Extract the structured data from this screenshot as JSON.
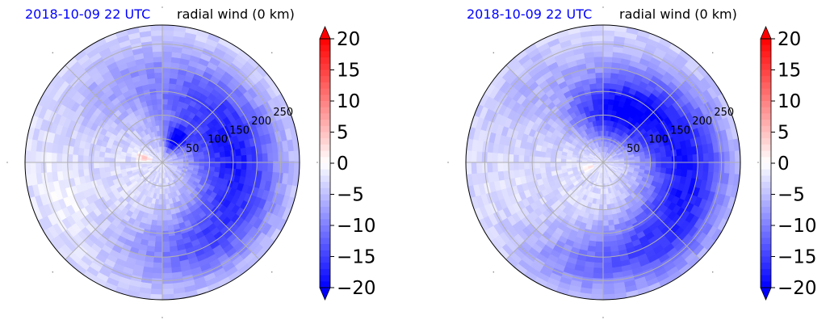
{
  "chart_data": [
    {
      "type": "heatmap",
      "projection": "polar",
      "title_left": "2018-10-09 22 UTC",
      "title_right": "radial wind (0 km)",
      "radial_ticks": [
        "50",
        "100",
        "150",
        "200",
        "250"
      ],
      "radial_tick_values": [
        50,
        100,
        150,
        200,
        250
      ],
      "radius_max": 290,
      "spoke_angles_deg": [
        0,
        45,
        90,
        135,
        180,
        225,
        270,
        315
      ],
      "grid": true,
      "colorbar": {
        "ticks": [
          "20",
          "15",
          "10",
          "5",
          "0",
          "−5",
          "−10",
          "−15",
          "−20"
        ],
        "tick_values": [
          20,
          15,
          10,
          5,
          0,
          -5,
          -10,
          -15,
          -20
        ],
        "range": [
          -20,
          20
        ],
        "extend": "both",
        "cmap": "bwr"
      },
      "features": [
        {
          "r": 130,
          "angle_deg": 40,
          "value": -11,
          "width": 120
        },
        {
          "r": 55,
          "angle_deg": 60,
          "value": -14,
          "width": 35
        },
        {
          "r": 40,
          "angle_deg": 165,
          "value": 9,
          "width": 18
        },
        {
          "r": 170,
          "angle_deg": -20,
          "value": -8,
          "width": 110
        },
        {
          "r": 200,
          "angle_deg": -70,
          "value": -6,
          "width": 90
        },
        {
          "r": 220,
          "angle_deg": 200,
          "value": 2,
          "width": 60
        },
        {
          "r": 200,
          "angle_deg": 120,
          "value": -3,
          "width": 80
        }
      ]
    },
    {
      "type": "heatmap",
      "projection": "polar",
      "title_left": "2018-10-09 22 UTC",
      "title_right": "radial wind (0 km)",
      "radial_ticks": [
        "50",
        "100",
        "150",
        "200",
        "250"
      ],
      "radial_tick_values": [
        50,
        100,
        150,
        200,
        250
      ],
      "radius_max": 290,
      "spoke_angles_deg": [
        0,
        45,
        90,
        135,
        180,
        225,
        270,
        315
      ],
      "grid": true,
      "colorbar": {
        "ticks": [
          "20",
          "15",
          "10",
          "5",
          "0",
          "−5",
          "−10",
          "−15",
          "−20"
        ],
        "tick_values": [
          20,
          15,
          10,
          5,
          0,
          -5,
          -10,
          -15,
          -20
        ],
        "range": [
          -20,
          20
        ],
        "extend": "both",
        "cmap": "bwr"
      },
      "features": [
        {
          "r": 110,
          "angle_deg": 75,
          "value": -15,
          "width": 90
        },
        {
          "r": 170,
          "angle_deg": 10,
          "value": -11,
          "width": 110
        },
        {
          "r": 200,
          "angle_deg": -50,
          "value": -9,
          "width": 100
        },
        {
          "r": 30,
          "angle_deg": 200,
          "value": 6,
          "width": 15
        },
        {
          "r": 220,
          "angle_deg": 200,
          "value": 2,
          "width": 60
        },
        {
          "r": 230,
          "angle_deg": 140,
          "value": -3,
          "width": 70
        },
        {
          "r": 230,
          "angle_deg": -110,
          "value": -4,
          "width": 80
        }
      ]
    }
  ]
}
